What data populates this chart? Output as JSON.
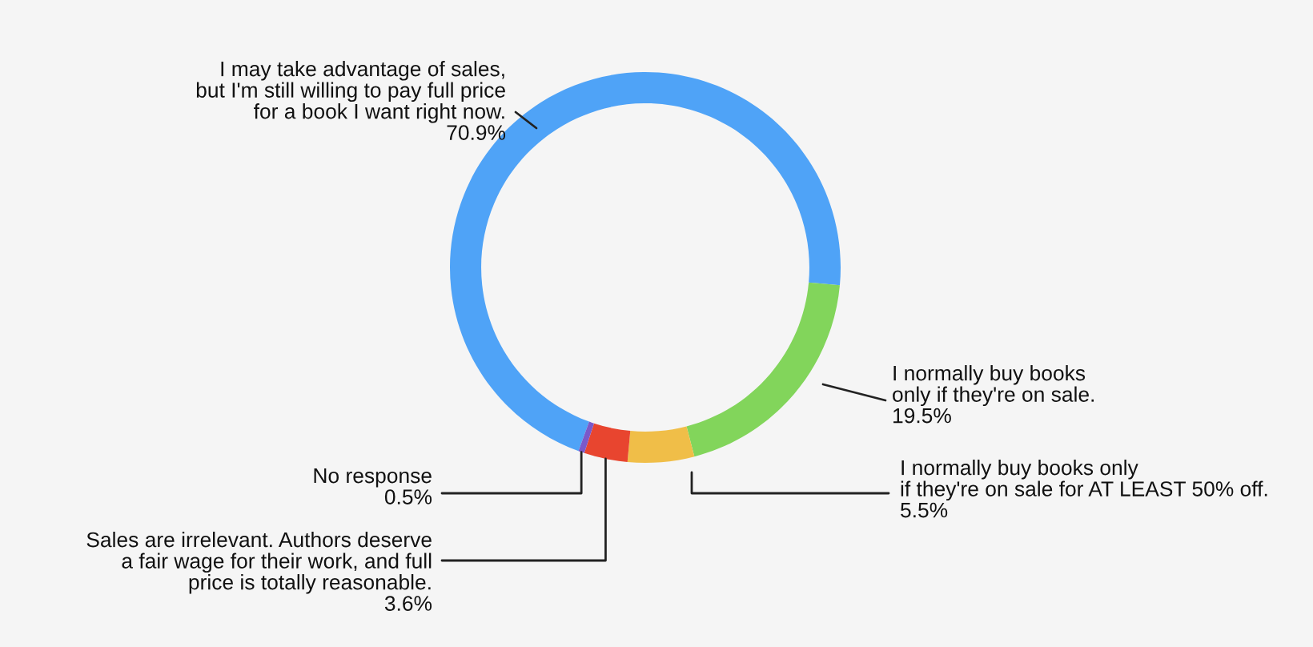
{
  "chart_data": {
    "type": "donut",
    "categories": [
      "I may take advantage of sales,\nbut I'm still willing to pay full price\nfor a book I want right now.",
      "I normally buy books\nonly if they're on sale.",
      "I normally buy books only\nif they're on sale for AT LEAST 50% off.",
      "Sales are irrelevant. Authors deserve\na fair wage for their work, and full\nprice is totally reasonable.",
      "No response"
    ],
    "values": [
      70.9,
      19.5,
      5.5,
      3.6,
      0.5
    ],
    "value_labels": [
      "70.9%",
      "19.5%",
      "5.5%",
      "3.6%",
      "0.5%"
    ],
    "colors": [
      "#4fa3f7",
      "#82d55b",
      "#f0be48",
      "#e8452f",
      "#7b59c9"
    ]
  }
}
